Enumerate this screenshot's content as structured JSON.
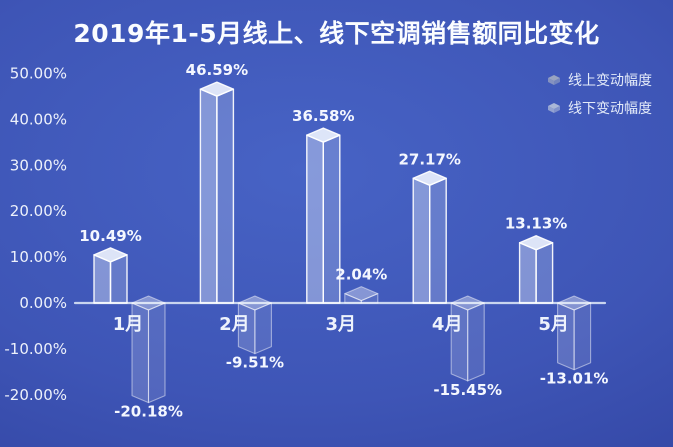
{
  "chart_data": {
    "type": "bar",
    "title": "2019年1-5月线上、线下空调销售额同比变化",
    "categories": [
      "1月",
      "2月",
      "3月",
      "4月",
      "5月"
    ],
    "series": [
      {
        "name": "线上变动幅度",
        "values": [
          10.49,
          46.59,
          36.58,
          27.17,
          13.13
        ],
        "labels": [
          "10.49%",
          "46.59%",
          "36.58%",
          "27.17%",
          "13.13%"
        ],
        "marker_color": "#98a3c1"
      },
      {
        "name": "线下变动幅度",
        "values": [
          -20.18,
          -9.51,
          2.04,
          -15.45,
          -13.01
        ],
        "labels": [
          "-20.18%",
          "-9.51%",
          "2.04%",
          "-15.45%",
          "-13.01%"
        ],
        "marker_color": "#aab7d7"
      }
    ],
    "xlabel": "",
    "ylabel": "",
    "ylim": [
      -25,
      52
    ],
    "y_ticks": {
      "labels": [
        "50.00%",
        "40.00%",
        "30.00%",
        "20.00%",
        "10.00%",
        "0.00%",
        "-10.00%",
        "-20.00%"
      ],
      "values": [
        50,
        40,
        30,
        20,
        10,
        0,
        -10,
        -20
      ]
    },
    "grid": false,
    "legend_position": "top-right"
  },
  "legend": [
    {
      "label": "线上变动幅度",
      "marker_color": "#98a3c1"
    },
    {
      "label": "线下变动幅度",
      "marker_color": "#aab7d7"
    }
  ],
  "colors": {
    "background_center": "#4763c5",
    "background_edge": "#2b3b96",
    "axis_line": "#c9d5ef",
    "text": "#f4f7ff"
  }
}
